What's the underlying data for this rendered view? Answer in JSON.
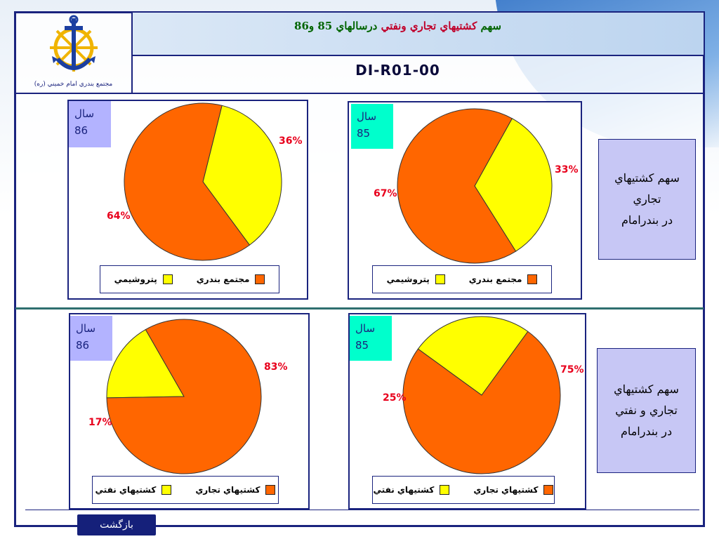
{
  "header": {
    "logo_caption": "مجتمع بندري امام خميني (ره)",
    "title_part1": "سهم",
    "title_part2": "كشتيهاي تجاري ونفتي",
    "title_part3": "درسالهاي 85 و86",
    "doc_code": "DI-R01-00"
  },
  "side_boxes": [
    {
      "line1": "سهم كشتيهاي",
      "line2": "تجاري",
      "line3": "در بندرامام"
    },
    {
      "line1": "سهم كشتيهاي",
      "line2": "تجاري و نفتي",
      "line3": "در بندرامام"
    }
  ],
  "year_prefix": "سال",
  "back_button": "بازگشت",
  "colors": {
    "orange": "#ff6600",
    "yellow": "#ffff00",
    "slice_border": "#333333",
    "year_lavender": "#b3b3ff",
    "year_cyan": "#00ffcc",
    "label_red": "#e8001c"
  },
  "chart_data": [
    {
      "type": "pie",
      "year": "86",
      "categories": [
        "مجتمع بندري",
        "پتروشيمي"
      ],
      "values": [
        64,
        36
      ],
      "labels": [
        "64%",
        "36%"
      ],
      "legend": [
        "مجتمع بندري",
        "پتروشيمي"
      ]
    },
    {
      "type": "pie",
      "year": "85",
      "categories": [
        "مجتمع بندري",
        "پتروشيمي"
      ],
      "values": [
        67,
        33
      ],
      "labels": [
        "67%",
        "33%"
      ],
      "legend": [
        "مجتمع بندري",
        "پتروشيمي"
      ]
    },
    {
      "type": "pie",
      "year": "86",
      "categories": [
        "كشتيهاي تجاري",
        "كشتيهاي نفتي"
      ],
      "values": [
        83,
        17
      ],
      "labels": [
        "83%",
        "17%"
      ],
      "legend": [
        "كشتيهاي تجاري",
        "كشتيهاي نفتي"
      ]
    },
    {
      "type": "pie",
      "year": "85",
      "categories": [
        "كشتيهاي تجاري",
        "كشتيهاي نفتي"
      ],
      "values": [
        75,
        25
      ],
      "labels": [
        "75%",
        "25%"
      ],
      "legend": [
        "كشتيهاي تجاري",
        "كشتيهاي نفتي"
      ]
    }
  ]
}
